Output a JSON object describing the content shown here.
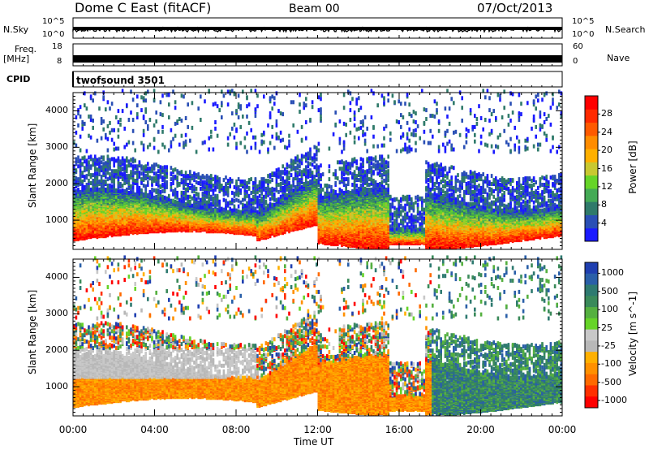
{
  "header": {
    "title": "Dome C East (fitACF)",
    "beam": "Beam 00",
    "date": "07/Oct/2013"
  },
  "top_panels": {
    "nsky_label": "N.Sky",
    "nsearch_label": "N.Search",
    "nsky_ticks": [
      "10^5",
      "10^0"
    ],
    "nsearch_ticks": [
      "10^5",
      "10^0"
    ],
    "freq_label": "Freq.",
    "freq_unit": "[MHz]",
    "freq_ticks": [
      "18",
      "8"
    ],
    "nave_label": "Nave",
    "nave_ticks": [
      "60",
      "0"
    ],
    "cpid_label": "CPID",
    "cpid_value": "twofsound 3501"
  },
  "chart_data": [
    {
      "type": "heatmap",
      "title": "",
      "ylabel": "Slant Range [km]",
      "xlabel": "",
      "yticks": [
        "1000",
        "2000",
        "3000",
        "4000"
      ],
      "ylim": [
        200,
        4500
      ],
      "colorbar": {
        "label": "Power [dB]",
        "ticks": [
          "4",
          "8",
          "12",
          "16",
          "20",
          "24",
          "28"
        ],
        "colors": [
          "#1a1aff",
          "#2a4fb5",
          "#2f7a6a",
          "#44aa55",
          "#66d428",
          "#c8c830",
          "#ffb000",
          "#ff8c00",
          "#ff5a00",
          "#ff2a00",
          "#ff0000"
        ]
      }
    },
    {
      "type": "heatmap",
      "title": "",
      "ylabel": "Slant Range [km]",
      "xlabel": "Time UT",
      "yticks": [
        "1000",
        "2000",
        "3000",
        "4000"
      ],
      "ylim": [
        200,
        4500
      ],
      "xticks": [
        "00:00",
        "04:00",
        "08:00",
        "12:00",
        "16:00",
        "20:00",
        "00:00"
      ],
      "colorbar": {
        "label": "Velocity [m s^-1]",
        "ticks": [
          "1000",
          "500",
          "100",
          "25",
          "-25",
          "-100",
          "-500",
          "-1000"
        ],
        "colors": [
          "#1f3fb0",
          "#2a5fa8",
          "#2e7a70",
          "#3a8a5a",
          "#55b040",
          "#66d428",
          "#c8c8c8",
          "#b8b8b8",
          "#ffb000",
          "#ff9000",
          "#ff6a00",
          "#ff3000",
          "#ff0000"
        ]
      }
    }
  ]
}
